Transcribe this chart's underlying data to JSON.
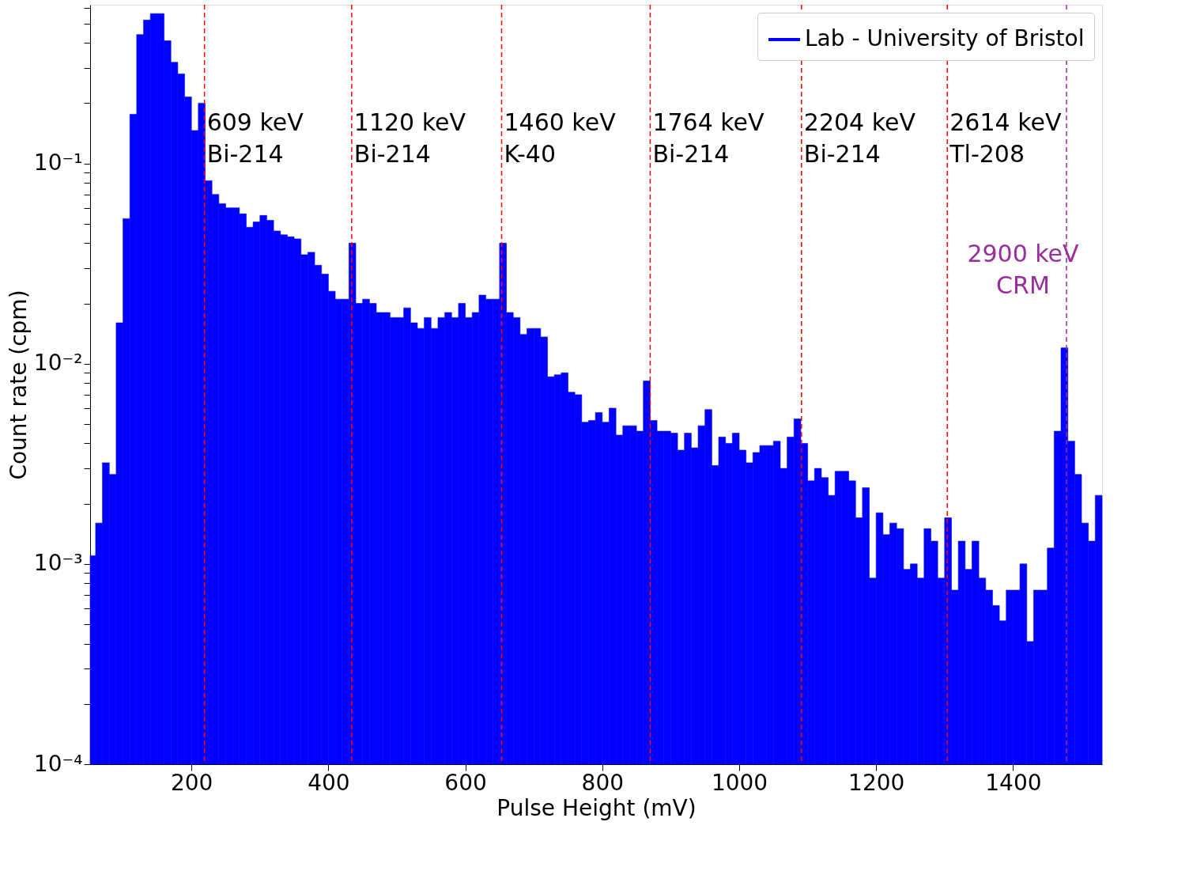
{
  "chart_data": {
    "type": "histogram",
    "xlabel": "Pulse Height (mV)",
    "ylabel": "Count rate (cpm)",
    "log": "y",
    "grid": false,
    "legend": "top right",
    "bins": [
      52,
      60,
      70,
      80,
      90,
      100,
      110,
      120,
      130,
      140,
      150,
      160,
      170,
      180,
      190,
      200,
      210,
      220,
      230,
      240,
      250,
      260,
      270,
      280,
      290,
      300,
      310,
      320,
      330,
      340,
      350,
      360,
      370,
      380,
      390,
      400,
      410,
      420,
      430,
      440,
      450,
      460,
      470,
      480,
      490,
      500,
      510,
      520,
      530,
      540,
      550,
      560,
      570,
      580,
      590,
      600,
      610,
      620,
      630,
      640,
      650,
      660,
      670,
      680,
      690,
      700,
      710,
      720,
      730,
      740,
      750,
      760,
      770,
      780,
      790,
      800,
      810,
      820,
      830,
      840,
      850,
      860,
      870,
      880,
      890,
      900,
      910,
      920,
      930,
      940,
      950,
      960,
      970,
      980,
      990,
      1000,
      1010,
      1020,
      1030,
      1040,
      1050,
      1060,
      1070,
      1080,
      1090,
      1100,
      1110,
      1120,
      1130,
      1140,
      1150,
      1160,
      1170,
      1180,
      1190,
      1200,
      1210,
      1220,
      1230,
      1240,
      1250,
      1260,
      1270,
      1280,
      1290,
      1300,
      1310,
      1320,
      1330,
      1340,
      1350,
      1360,
      1370,
      1380,
      1390,
      1400,
      1410,
      1420,
      1430,
      1440,
      1450,
      1460,
      1470,
      1480,
      1490,
      1500,
      1510,
      1520,
      1530
    ],
    "series": [
      {
        "name": "Lab - University of Bristol",
        "color": "#0000ff",
        "values": [
          0.0011,
          0.0016,
          0.0032,
          0.0028,
          0.016,
          0.053,
          0.176,
          0.44,
          0.52,
          0.56,
          0.56,
          0.41,
          0.32,
          0.28,
          0.215,
          0.146,
          0.2,
          0.082,
          0.07,
          0.063,
          0.06,
          0.06,
          0.056,
          0.048,
          0.051,
          0.055,
          0.052,
          0.046,
          0.044,
          0.043,
          0.042,
          0.035,
          0.036,
          0.031,
          0.028,
          0.023,
          0.021,
          0.021,
          0.04,
          0.02,
          0.021,
          0.02,
          0.018,
          0.018,
          0.017,
          0.017,
          0.019,
          0.016,
          0.015,
          0.017,
          0.015,
          0.017,
          0.018,
          0.017,
          0.02,
          0.017,
          0.018,
          0.022,
          0.021,
          0.021,
          0.04,
          0.018,
          0.017,
          0.014,
          0.015,
          0.015,
          0.0136,
          0.0086,
          0.0088,
          0.009,
          0.0072,
          0.007,
          0.0051,
          0.0052,
          0.0057,
          0.0051,
          0.006,
          0.0044,
          0.0049,
          0.0049,
          0.0046,
          0.0082,
          0.0052,
          0.0046,
          0.0046,
          0.0045,
          0.0037,
          0.0045,
          0.0038,
          0.0049,
          0.0059,
          0.0031,
          0.0043,
          0.004,
          0.0045,
          0.0037,
          0.0032,
          0.0036,
          0.0039,
          0.0039,
          0.0041,
          0.003,
          0.0043,
          0.0053,
          0.004,
          0.0026,
          0.003,
          0.0027,
          0.0022,
          0.0029,
          0.0029,
          0.0026,
          0.0017,
          0.0024,
          0.00085,
          0.0018,
          0.0014,
          0.0016,
          0.0015,
          0.00094,
          0.001,
          0.00085,
          0.0015,
          0.0013,
          0.00085,
          0.0017,
          0.00074,
          0.0013,
          0.00094,
          0.0013,
          0.00085,
          0.00074,
          0.00062,
          0.00052,
          0.00074,
          0.00074,
          0.001,
          0.00041,
          0.00074,
          0.00074,
          0.0012,
          0.0046,
          0.012,
          0.0041,
          0.0028,
          0.0016,
          0.0013,
          0.0022
        ]
      }
    ],
    "xlim": [
      52,
      1530
    ],
    "xticks": [
      200,
      400,
      600,
      800,
      1000,
      1200,
      1400
    ],
    "ylim": [
      0.0001,
      0.62
    ],
    "yticks": [
      {
        "value": 0.0001,
        "label": "10⁻⁴"
      },
      {
        "value": 0.0002,
        "label": null
      },
      {
        "value": 0.0003,
        "label": null
      },
      {
        "value": 0.0004,
        "label": null
      },
      {
        "value": 0.0005,
        "label": null
      },
      {
        "value": 0.0006,
        "label": null
      },
      {
        "value": 0.0007,
        "label": null
      },
      {
        "value": 0.0008,
        "label": null
      },
      {
        "value": 0.0009,
        "label": null
      },
      {
        "value": 0.001,
        "label": "10⁻³"
      },
      {
        "value": 0.002,
        "label": null
      },
      {
        "value": 0.003,
        "label": null
      },
      {
        "value": 0.004,
        "label": null
      },
      {
        "value": 0.005,
        "label": null
      },
      {
        "value": 0.006,
        "label": null
      },
      {
        "value": 0.007,
        "label": null
      },
      {
        "value": 0.008,
        "label": null
      },
      {
        "value": 0.009,
        "label": null
      },
      {
        "value": 0.01,
        "label": "10⁻²"
      },
      {
        "value": 0.02,
        "label": null
      },
      {
        "value": 0.03,
        "label": null
      },
      {
        "value": 0.04,
        "label": null
      },
      {
        "value": 0.05,
        "label": null
      },
      {
        "value": 0.06,
        "label": null
      },
      {
        "value": 0.07,
        "label": null
      },
      {
        "value": 0.08,
        "label": null
      },
      {
        "value": 0.09,
        "label": null
      },
      {
        "value": 0.1,
        "label": "10⁻¹"
      },
      {
        "value": 0.2,
        "label": null
      },
      {
        "value": 0.3,
        "label": null
      },
      {
        "value": 0.4,
        "label": null
      },
      {
        "value": 0.5,
        "label": null
      },
      {
        "value": 0.6,
        "label": null
      }
    ],
    "ref_lines": [
      {
        "axis": "x",
        "value": 219,
        "label": "609 keV\nBi-214",
        "color": "#ff0000",
        "line_style": "dashed"
      },
      {
        "axis": "x",
        "value": 434,
        "label": "1120 keV\nBi-214",
        "color": "#ff0000",
        "line_style": "dashed"
      },
      {
        "axis": "x",
        "value": 653,
        "label": "1460 keV\nK-40",
        "color": "#ff0000",
        "line_style": "dashed"
      },
      {
        "axis": "x",
        "value": 870,
        "label": "1764 keV\nBi-214",
        "color": "#ff0000",
        "line_style": "dashed"
      },
      {
        "axis": "x",
        "value": 1091,
        "label": "2204 keV\nBi-214",
        "color": "#ff0000",
        "line_style": "dashed"
      },
      {
        "axis": "x",
        "value": 1304,
        "label": "2614 keV\nTl-208",
        "color": "#ff0000",
        "line_style": "dashed"
      },
      {
        "axis": "x",
        "value": 1478,
        "color": "#9b2d9b",
        "line_style": "dashed"
      }
    ],
    "annotations": [
      {
        "text": "2900 keV\nCRM",
        "x": 1478,
        "y": 0.035
      }
    ]
  }
}
